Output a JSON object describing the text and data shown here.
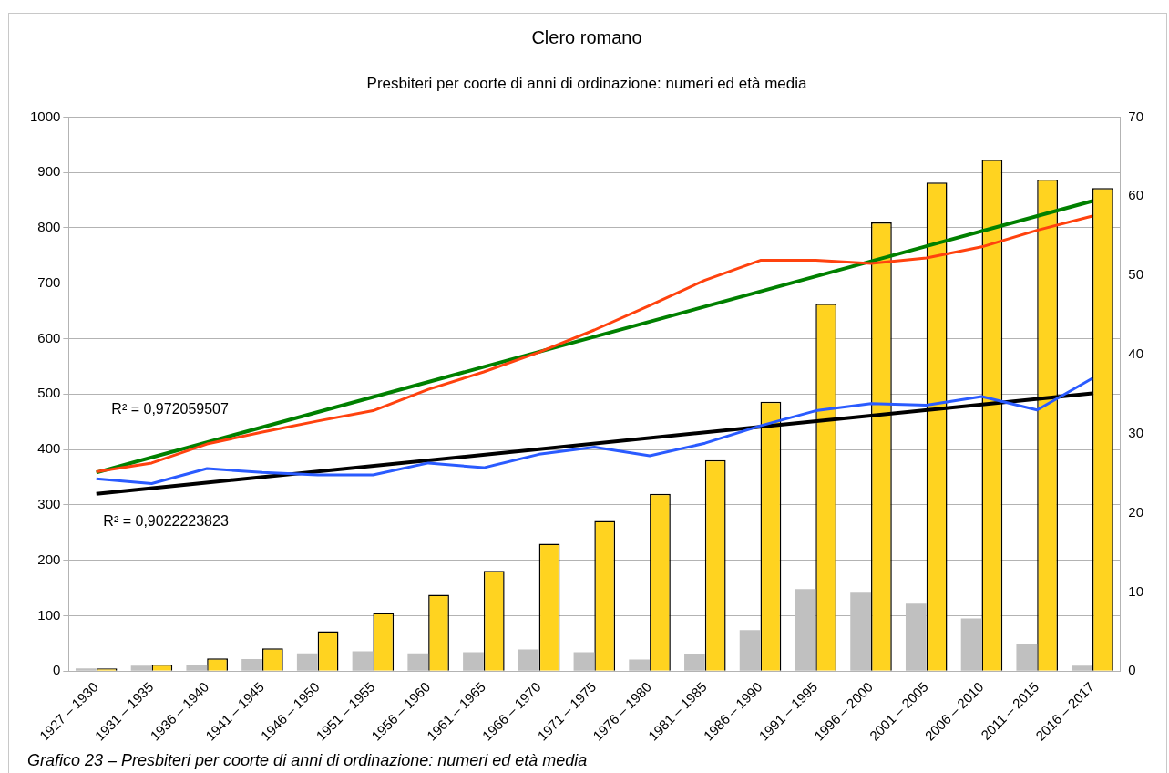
{
  "chart_data": {
    "type": "bar",
    "title": "Clero romano",
    "subtitle": "Presbiteri per coorte di anni di ordinazione: numeri ed età media",
    "categories": [
      "1927 – 1930",
      "1931 – 1935",
      "1936 – 1940",
      "1941 – 1945",
      "1946 – 1950",
      "1951 – 1955",
      "1956 – 1960",
      "1961 – 1965",
      "1966 – 1970",
      "1971 – 1975",
      "1976 – 1980",
      "1981 – 1985",
      "1986 – 1990",
      "1991 – 1995",
      "1996 – 2000",
      "2001 – 2005",
      "2006 – 2010",
      "2011 – 2015",
      "2016 – 2017"
    ],
    "series": [
      {
        "color": "#c0c0c0",
        "values": [
          5,
          10,
          12,
          22,
          32,
          36,
          32,
          34,
          39,
          34,
          21,
          30,
          74,
          148,
          143,
          122,
          95,
          49,
          10
        ]
      },
      {
        "color": "#ffd320",
        "values": [
          5,
          12,
          23,
          41,
          72,
          105,
          138,
          181,
          230,
          271,
          320,
          381,
          486,
          663,
          810,
          882,
          923,
          887,
          872
        ]
      },
      {
        "type": "line",
        "axis": "y2",
        "color": "#ff420e",
        "values": [
          25.2,
          26.3,
          28.7,
          30.2,
          31.6,
          32.9,
          35.6,
          37.8,
          40.3,
          43.1,
          46.2,
          49.4,
          51.9,
          51.9,
          51.5,
          52.2,
          53.6,
          55.7,
          57.5
        ]
      },
      {
        "type": "line",
        "axis": "y2",
        "color": "#2a5bff",
        "values": [
          24.3,
          23.7,
          25.6,
          25.1,
          24.8,
          24.8,
          26.3,
          25.7,
          27.4,
          28.3,
          27.2,
          28.8,
          31.0,
          32.9,
          33.8,
          33.6,
          34.7,
          33.0,
          37.0
        ]
      },
      {
        "type": "line",
        "axis": "y2",
        "color": "#008000",
        "x": [
          "1927 – 1930",
          "2016 – 2017"
        ],
        "values": [
          25.1,
          59.4
        ]
      },
      {
        "type": "line",
        "axis": "y2",
        "color": "#000000",
        "x": [
          "1927 – 1930",
          "2016 – 2017"
        ],
        "values": [
          22.4,
          35.1
        ]
      }
    ],
    "ylim": [
      0,
      1000
    ],
    "yticks": [
      0,
      100,
      200,
      300,
      400,
      500,
      600,
      700,
      800,
      900,
      1000
    ],
    "y2lim": [
      0,
      70
    ],
    "y2ticks": [
      0,
      10,
      20,
      30,
      40,
      50,
      60,
      70
    ],
    "grid": "y",
    "legend": false,
    "marker": "none",
    "line_style": "solid",
    "annotations": [
      "R² = 0,972059507",
      "R² = 0,9022223823",
      "Grafico 23 – Presbiteri per coorte di anni di ordinazione: numeri ed età media"
    ]
  }
}
